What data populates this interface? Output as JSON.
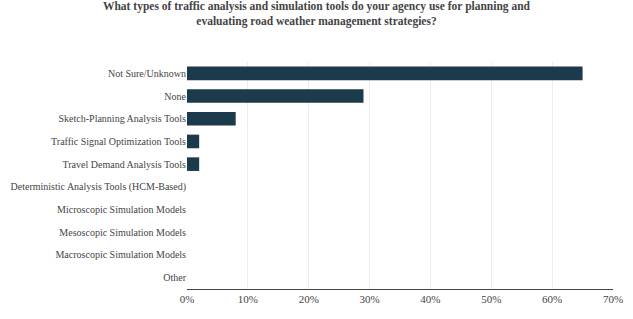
{
  "chart_data": {
    "type": "bar",
    "orientation": "horizontal",
    "title": "What types of traffic analysis and simulation tools do your agency use for planning and\nevaluating road weather management strategies?",
    "categories": [
      "Other",
      "Macroscopic Simulation Models",
      "Mesoscopic Simulation Models",
      "Microscopic Simulation Models",
      "Deterministic Analysis Tools (HCM-Based)",
      "Travel Demand Analysis Tools",
      "Traffic Signal Optimization Tools",
      "Sketch-Planning Analysis Tools",
      "None",
      "Not Sure/Unknown"
    ],
    "values": [
      0.0,
      0.0,
      0.0,
      0.0,
      0.0,
      0.02,
      0.02,
      0.08,
      0.29,
      0.65
    ],
    "color": "#1B3A4B",
    "xlim": [
      0,
      0.7
    ],
    "xticks": [
      {
        "value": 0.0,
        "label": "0%"
      },
      {
        "value": 0.1,
        "label": "10%"
      },
      {
        "value": 0.2,
        "label": "20%"
      },
      {
        "value": 0.3,
        "label": "30%"
      },
      {
        "value": 0.4,
        "label": "40%"
      },
      {
        "value": 0.5,
        "label": "50%"
      },
      {
        "value": 0.6,
        "label": "60%"
      },
      {
        "value": 0.7,
        "label": "70%"
      }
    ],
    "grid": true
  }
}
